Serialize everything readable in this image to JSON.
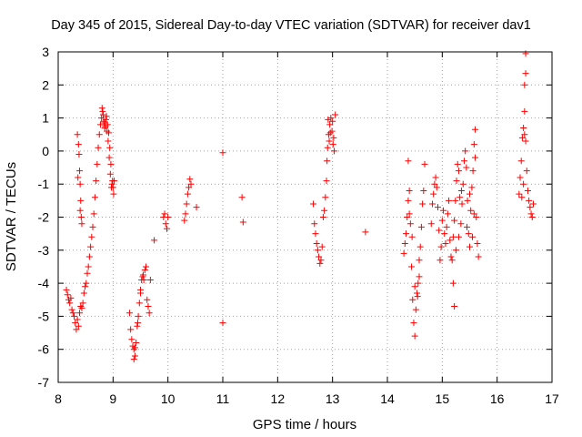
{
  "chart_data": {
    "type": "scatter",
    "title": "Day 345 of 2015, Sidereal Day-to-day VTEC variation (SDTVAR) for receiver dav1",
    "xlabel": "GPS time / hours",
    "ylabel": "SDTVAR / TECUs",
    "xlim": [
      8,
      17
    ],
    "ylim": [
      -7,
      3
    ],
    "xticks": [
      8,
      9,
      10,
      11,
      12,
      13,
      14,
      15,
      16,
      17
    ],
    "yticks": [
      -7,
      -6,
      -5,
      -4,
      -3,
      -2,
      -1,
      0,
      1,
      2,
      3
    ],
    "grid": true,
    "marker": "+",
    "color": "#ff0000",
    "series": [
      {
        "name": "dav1",
        "points": [
          [
            8.15,
            -4.2
          ],
          [
            8.17,
            -4.35
          ],
          [
            8.19,
            -4.5
          ],
          [
            8.21,
            -4.6
          ],
          [
            8.23,
            -4.45
          ],
          [
            8.25,
            -4.8
          ],
          [
            8.27,
            -4.9
          ],
          [
            8.29,
            -5.0
          ],
          [
            8.31,
            -5.2
          ],
          [
            8.33,
            -5.4
          ],
          [
            8.35,
            -5.1
          ],
          [
            8.37,
            -5.3
          ],
          [
            8.39,
            -4.9
          ],
          [
            8.41,
            -4.7
          ],
          [
            8.43,
            -4.75
          ],
          [
            8.45,
            -4.6
          ],
          [
            8.47,
            -4.3
          ],
          [
            8.49,
            -4.1
          ],
          [
            8.51,
            -4.0
          ],
          [
            8.53,
            -3.7
          ],
          [
            8.55,
            -3.5
          ],
          [
            8.57,
            -3.2
          ],
          [
            8.59,
            -2.9
          ],
          [
            8.61,
            -2.6
          ],
          [
            8.63,
            -2.3
          ],
          [
            8.65,
            -1.9
          ],
          [
            8.67,
            -1.4
          ],
          [
            8.69,
            -0.9
          ],
          [
            8.71,
            -0.4
          ],
          [
            8.73,
            0.1
          ],
          [
            8.75,
            0.5
          ],
          [
            8.77,
            0.8
          ],
          [
            8.79,
            1.0
          ],
          [
            8.81,
            1.2
          ],
          [
            8.83,
            0.9
          ],
          [
            8.85,
            0.7
          ],
          [
            8.87,
            0.95
          ],
          [
            8.89,
            0.6
          ],
          [
            8.91,
            0.3
          ],
          [
            8.93,
            -0.2
          ],
          [
            8.95,
            -0.7
          ],
          [
            8.97,
            -1.1
          ],
          [
            8.99,
            -0.9
          ],
          [
            9.01,
            -1.3
          ],
          [
            8.35,
            0.5
          ],
          [
            8.37,
            0.2
          ],
          [
            8.38,
            -0.1
          ],
          [
            8.39,
            -0.6
          ],
          [
            8.4,
            -1.0
          ],
          [
            8.41,
            -1.5
          ],
          [
            8.42,
            -2.0
          ],
          [
            8.43,
            -2.2
          ],
          [
            8.36,
            -0.8
          ],
          [
            8.4,
            -1.8
          ],
          [
            8.8,
            1.3
          ],
          [
            8.82,
            1.1
          ],
          [
            8.84,
            0.85
          ],
          [
            8.86,
            0.75
          ],
          [
            8.88,
            1.05
          ],
          [
            8.9,
            0.8
          ],
          [
            8.92,
            0.55
          ],
          [
            8.94,
            0.1
          ],
          [
            8.96,
            -0.4
          ],
          [
            8.98,
            -1.0
          ],
          [
            9.0,
            -1.1
          ],
          [
            9.02,
            -0.9
          ],
          [
            9.3,
            -4.9
          ],
          [
            9.32,
            -5.4
          ],
          [
            9.34,
            -5.7
          ],
          [
            9.36,
            -5.9
          ],
          [
            9.38,
            -6.0
          ],
          [
            9.4,
            -6.2
          ],
          [
            9.42,
            -5.8
          ],
          [
            9.44,
            -5.3
          ],
          [
            9.46,
            -5.0
          ],
          [
            9.48,
            -4.6
          ],
          [
            9.5,
            -4.2
          ],
          [
            9.52,
            -3.9
          ],
          [
            9.54,
            -3.8
          ],
          [
            9.56,
            -3.9
          ],
          [
            9.58,
            -3.6
          ],
          [
            9.6,
            -3.5
          ],
          [
            9.62,
            -4.5
          ],
          [
            9.64,
            -4.7
          ],
          [
            9.66,
            -4.9
          ],
          [
            9.68,
            -3.9
          ],
          [
            9.38,
            -6.3
          ],
          [
            9.4,
            -5.95
          ],
          [
            9.45,
            -5.2
          ],
          [
            9.5,
            -4.3
          ],
          [
            9.55,
            -3.75
          ],
          [
            9.75,
            -2.7
          ],
          [
            9.92,
            -2.0
          ],
          [
            9.94,
            -1.9
          ],
          [
            9.96,
            -2.2
          ],
          [
            9.98,
            -2.35
          ],
          [
            10.0,
            -2.0
          ],
          [
            10.3,
            -2.1
          ],
          [
            10.32,
            -1.9
          ],
          [
            10.34,
            -1.6
          ],
          [
            10.36,
            -1.3
          ],
          [
            10.38,
            -1.1
          ],
          [
            10.4,
            -0.85
          ],
          [
            10.42,
            -1.0
          ],
          [
            10.52,
            -1.7
          ],
          [
            11.0,
            -0.05
          ],
          [
            11.0,
            -5.2
          ],
          [
            11.35,
            -1.4
          ],
          [
            11.37,
            -2.15
          ],
          [
            12.65,
            -1.6
          ],
          [
            12.67,
            -2.2
          ],
          [
            12.69,
            -2.5
          ],
          [
            12.71,
            -2.8
          ],
          [
            12.73,
            -3.0
          ],
          [
            12.75,
            -3.2
          ],
          [
            12.77,
            -3.4
          ],
          [
            12.79,
            -3.3
          ],
          [
            12.81,
            -2.9
          ],
          [
            12.83,
            -2.0
          ],
          [
            12.85,
            -1.8
          ],
          [
            12.87,
            -1.4
          ],
          [
            12.89,
            -0.9
          ],
          [
            12.91,
            0.1
          ],
          [
            12.93,
            0.5
          ],
          [
            12.95,
            0.8
          ],
          [
            12.97,
            1.0
          ],
          [
            12.99,
            0.6
          ],
          [
            13.01,
            0.2
          ],
          [
            13.03,
            0.0
          ],
          [
            13.05,
            1.1
          ],
          [
            12.9,
            -0.3
          ],
          [
            12.92,
            0.95
          ],
          [
            12.94,
            0.3
          ],
          [
            12.96,
            0.55
          ],
          [
            13.0,
            0.9
          ],
          [
            13.02,
            0.4
          ],
          [
            13.6,
            -2.45
          ],
          [
            14.3,
            -3.1
          ],
          [
            14.32,
            -2.8
          ],
          [
            14.34,
            -2.5
          ],
          [
            14.36,
            -2.0
          ],
          [
            14.38,
            -1.5
          ],
          [
            14.4,
            -1.9
          ],
          [
            14.42,
            -2.2
          ],
          [
            14.44,
            -3.5
          ],
          [
            14.46,
            -4.5
          ],
          [
            14.48,
            -5.2
          ],
          [
            14.5,
            -5.6
          ],
          [
            14.52,
            -4.8
          ],
          [
            14.54,
            -4.3
          ],
          [
            14.56,
            -4.0
          ],
          [
            14.58,
            -3.8
          ],
          [
            14.6,
            -2.9
          ],
          [
            14.62,
            -2.3
          ],
          [
            14.64,
            -1.6
          ],
          [
            14.66,
            -1.2
          ],
          [
            14.68,
            -0.4
          ],
          [
            14.38,
            -0.3
          ],
          [
            14.4,
            -1.2
          ],
          [
            14.45,
            -2.6
          ],
          [
            14.5,
            -4.1
          ],
          [
            14.55,
            -4.4
          ],
          [
            14.58,
            -3.3
          ],
          [
            14.8,
            -2.2
          ],
          [
            14.82,
            -1.6
          ],
          [
            14.84,
            -1.3
          ],
          [
            14.86,
            -1.0
          ],
          [
            14.88,
            -0.8
          ],
          [
            14.9,
            -1.1
          ],
          [
            14.92,
            -1.7
          ],
          [
            14.94,
            -2.4
          ],
          [
            14.96,
            -3.3
          ],
          [
            14.98,
            -2.9
          ],
          [
            15.0,
            -2.1
          ],
          [
            15.02,
            -1.8
          ],
          [
            15.04,
            -2.5
          ],
          [
            15.06,
            -2.8
          ],
          [
            15.08,
            -2.3
          ],
          [
            15.1,
            -1.9
          ],
          [
            15.12,
            -1.5
          ],
          [
            15.14,
            -2.7
          ],
          [
            15.16,
            -3.2
          ],
          [
            15.18,
            -3.3
          ],
          [
            15.2,
            -2.6
          ],
          [
            15.22,
            -2.1
          ],
          [
            15.24,
            -1.5
          ],
          [
            15.26,
            -0.9
          ],
          [
            15.28,
            -0.4
          ],
          [
            15.3,
            -0.6
          ],
          [
            15.32,
            -1.4
          ],
          [
            15.34,
            -2.2
          ],
          [
            15.36,
            -1.6
          ],
          [
            15.38,
            -1.0
          ],
          [
            15.4,
            -0.3
          ],
          [
            15.42,
            0.0
          ],
          [
            15.44,
            -0.5
          ],
          [
            15.46,
            -1.5
          ],
          [
            15.48,
            -2.5
          ],
          [
            15.5,
            -2.9
          ],
          [
            15.52,
            -1.8
          ],
          [
            15.54,
            -1.1
          ],
          [
            15.56,
            -0.6
          ],
          [
            15.58,
            0.2
          ],
          [
            15.6,
            -0.2
          ],
          [
            15.62,
            -2.0
          ],
          [
            15.64,
            -2.8
          ],
          [
            15.66,
            -3.2
          ],
          [
            15.2,
            -4.0
          ],
          [
            15.22,
            -4.7
          ],
          [
            15.25,
            -3.0
          ],
          [
            15.3,
            -2.6
          ],
          [
            15.35,
            -1.2
          ],
          [
            15.45,
            -2.3
          ],
          [
            15.55,
            -2.6
          ],
          [
            15.6,
            0.65
          ],
          [
            15.58,
            -1.9
          ],
          [
            15.5,
            -1.3
          ],
          [
            16.4,
            -1.3
          ],
          [
            16.42,
            -0.8
          ],
          [
            16.44,
            -0.3
          ],
          [
            16.46,
            0.4
          ],
          [
            16.48,
            0.7
          ],
          [
            16.5,
            0.5
          ],
          [
            16.52,
            0.3
          ],
          [
            16.54,
            -0.6
          ],
          [
            16.56,
            -1.2
          ],
          [
            16.58,
            -1.5
          ],
          [
            16.6,
            -1.7
          ],
          [
            16.62,
            -1.9
          ],
          [
            16.64,
            -2.0
          ],
          [
            16.66,
            -1.6
          ],
          [
            16.5,
            1.2
          ],
          [
            16.5,
            2.0
          ],
          [
            16.52,
            2.35
          ],
          [
            16.52,
            2.95
          ],
          [
            16.45,
            -1.4
          ],
          [
            16.48,
            -1.0
          ]
        ]
      }
    ]
  }
}
